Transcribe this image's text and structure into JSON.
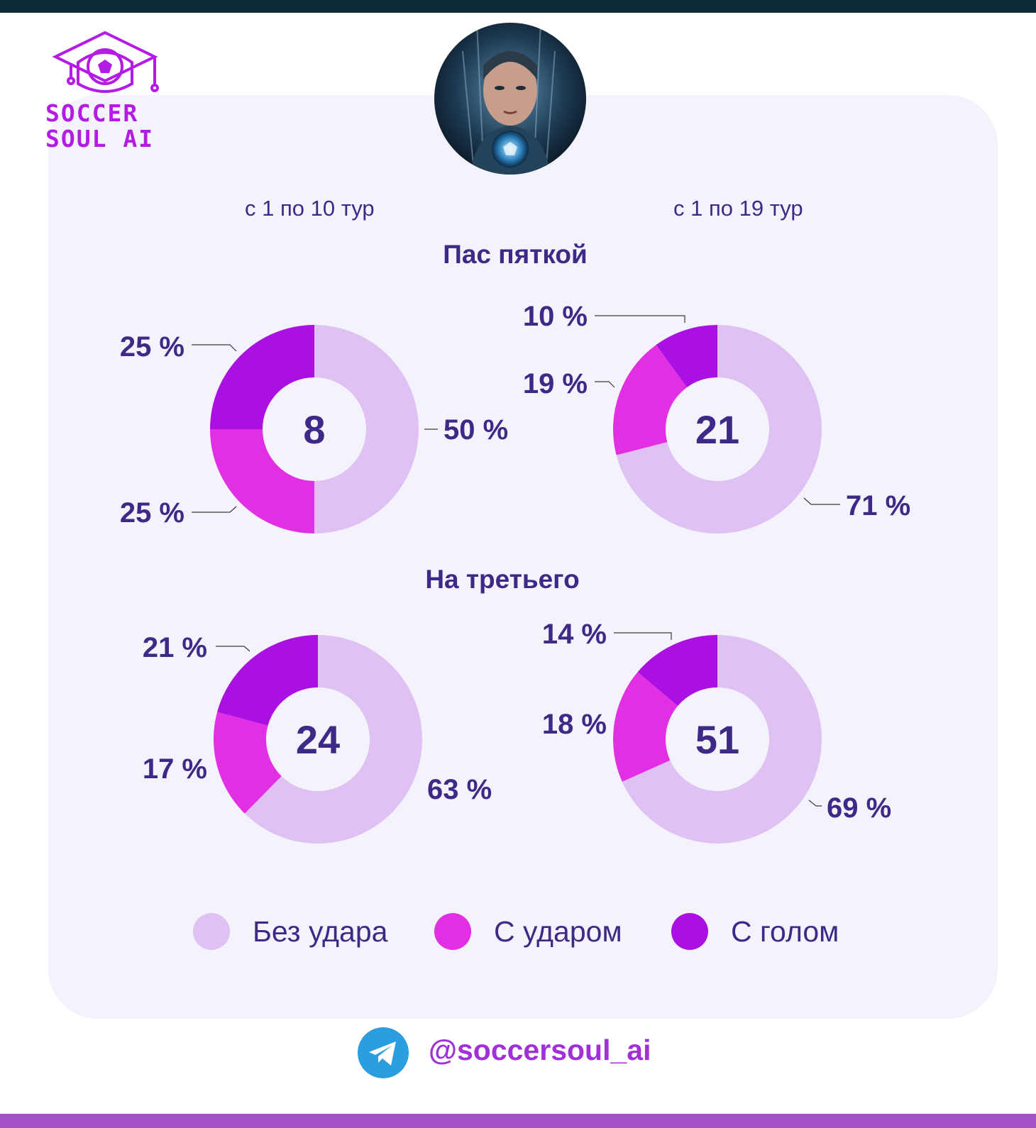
{
  "brand": {
    "logo_line1": "SOCCER",
    "logo_line2": "SOUL AI",
    "logo_color": "#b41ce6"
  },
  "periods": {
    "left": "с 1 по 10 тур",
    "right": "с 1 по 19 тур"
  },
  "colors": {
    "no_shot": "#dfc1f3",
    "with_shot": "#e22fe4",
    "with_goal": "#ab10e2",
    "text": "#3e2a86"
  },
  "legend": {
    "no_shot": "Без удара",
    "with_shot": "С ударом",
    "with_goal": "С голом"
  },
  "footer": {
    "telegram_handle": "@soccersoul_ai"
  },
  "chart_data": [
    {
      "type": "pie",
      "title": "Пас пяткой",
      "period": "с 1 по 10 тур",
      "total": "8",
      "categories": [
        "Без удара",
        "С ударом",
        "С голом"
      ],
      "values": [
        50,
        25,
        25
      ],
      "labels": [
        "50 %",
        "25 %",
        "25 %"
      ]
    },
    {
      "type": "pie",
      "title": "Пас пяткой",
      "period": "с 1 по 19 тур",
      "total": "21",
      "categories": [
        "Без удара",
        "С ударом",
        "С голом"
      ],
      "values": [
        71,
        19,
        10
      ],
      "labels": [
        "71 %",
        "19 %",
        "10 %"
      ]
    },
    {
      "type": "pie",
      "title": "На третьего",
      "period": "с 1 по 10 тур",
      "total": "24",
      "categories": [
        "Без удара",
        "С ударом",
        "С голом"
      ],
      "values": [
        63,
        17,
        21
      ],
      "labels": [
        "63 %",
        "17 %",
        "21 %"
      ]
    },
    {
      "type": "pie",
      "title": "На третьего",
      "period": "с 1 по 19 тур",
      "total": "51",
      "categories": [
        "Без удара",
        "С ударом",
        "С голом"
      ],
      "values": [
        69,
        18,
        14
      ],
      "labels": [
        "69 %",
        "18 %",
        "14 %"
      ]
    }
  ]
}
